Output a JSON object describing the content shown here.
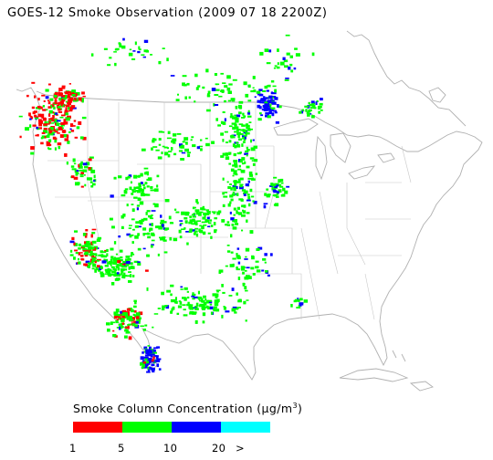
{
  "title": "GOES-12 Smoke Observation (2009 07 18  2200Z)",
  "legend": {
    "title_prefix": "Smoke Column Concentration (",
    "title_unit": "μg/m",
    "title_sup": "3",
    "title_suffix": ")",
    "colors": [
      "#ff0000",
      "#00ff00",
      "#0000ff",
      "#00ffff"
    ],
    "ticks": [
      "1",
      "5",
      "10",
      "20",
      ">"
    ]
  },
  "map": {
    "region": "Contiguous United States",
    "colors": {
      "land_outline": "#b0b0b0",
      "state_lines": "#c8c8c8",
      "low": "#ff0000",
      "moderate": "#00ff00",
      "high": "#0000ff",
      "very_high": "#00ffff"
    }
  }
}
